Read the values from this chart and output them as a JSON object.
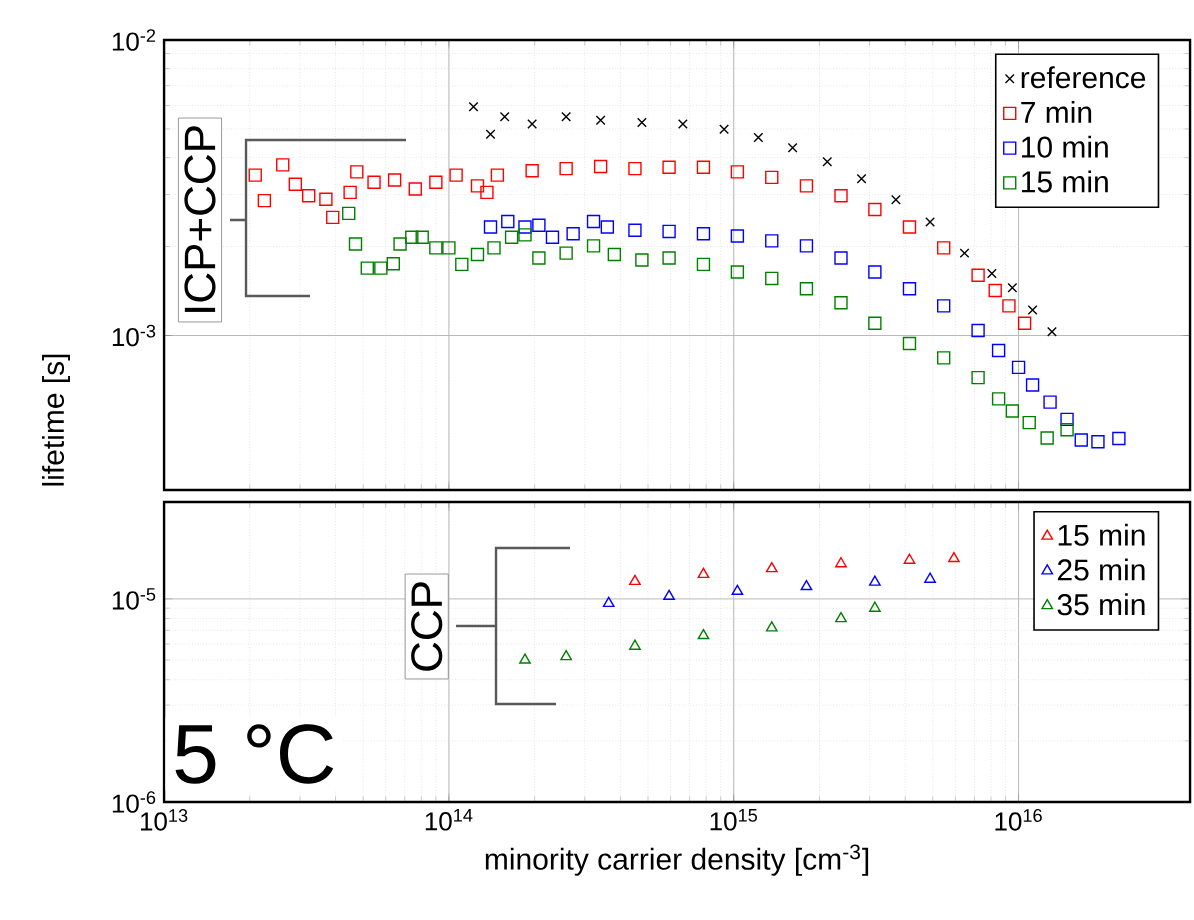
{
  "chart_data": [
    {
      "type": "scatter",
      "log": "xy",
      "grid": true,
      "legend": "top right",
      "tick_labels": "y",
      "ylabel": "lifetime [s]",
      "xlim": [
        10000000000000.0,
        4e+16
      ],
      "ylim": [
        0.0003,
        0.01
      ],
      "xticks": [
        {
          "value": 10000000000000.0,
          "label": null
        },
        {
          "value": 100000000000000.0,
          "label": null
        },
        {
          "value": 1000000000000000.0,
          "label": null
        },
        {
          "value": 1e+16,
          "label": null
        }
      ],
      "yticks": [
        {
          "value": 0.001,
          "label": "10$^{-3}$"
        },
        {
          "value": 0.01,
          "label": "10$^{-2}$"
        }
      ],
      "annotations": [
        "ICP+CCP"
      ],
      "series": [
        {
          "name": "reference",
          "color": "#000000",
          "marker": "cross",
          "x": [
            122000000000000.0,
            140000000000000.0,
            157000000000000.0,
            196000000000000.0,
            258000000000000.0,
            341000000000000.0,
            476000000000000.0,
            663000000000000.0,
            925000000000000.0,
            1220000000000000.0,
            1610000000000000.0,
            2130000000000000.0,
            2810000000000000.0,
            3710000000000000.0,
            4890000000000000.0,
            6460000000000000.0,
            8060000000000000.0,
            9510000000000000.0,
            1.12e+16,
            1.31e+16
          ],
          "values": [
            0.00594,
            0.0048,
            0.0055,
            0.0052,
            0.0055,
            0.00535,
            0.00526,
            0.0052,
            0.00499,
            0.00468,
            0.00432,
            0.00387,
            0.00339,
            0.00288,
            0.00242,
            0.0019,
            0.00162,
            0.00145,
            0.00122,
            0.00103
          ]
        },
        {
          "name": "7 min",
          "color": "#ff0000",
          "marker": "square",
          "x": [
            20900000000000.0,
            22500000000000.0,
            26100000000000.0,
            28900000000000.0,
            32200000000000.0,
            37000000000000.0,
            39100000000000.0,
            45000000000000.0,
            47500000000000.0,
            54600000000000.0,
            64500000000000.0,
            76200000000000.0,
            90000000000000.0,
            106000000000000.0,
            126000000000000.0,
            136000000000000.0,
            148000000000000.0,
            196000000000000.0,
            258000000000000.0,
            341000000000000.0,
            450000000000000.0,
            593000000000000.0,
            783000000000000.0,
            1030000000000000.0,
            1360000000000000.0,
            1800000000000000.0,
            2380000000000000.0,
            3130000000000000.0,
            4140000000000000.0,
            5460000000000000.0,
            7210000000000000.0,
            8280000000000000.0,
            9250000000000000.0,
            1.05e+16
          ],
          "values": [
            0.00349,
            0.00286,
            0.00378,
            0.00325,
            0.00297,
            0.00289,
            0.00251,
            0.00305,
            0.00358,
            0.0033,
            0.00336,
            0.00313,
            0.0033,
            0.00349,
            0.00321,
            0.00305,
            0.00349,
            0.00361,
            0.00367,
            0.00373,
            0.00367,
            0.00371,
            0.00371,
            0.00358,
            0.00343,
            0.00321,
            0.00297,
            0.00267,
            0.00233,
            0.00198,
            0.0016,
            0.00142,
            0.00126,
            0.0011
          ]
        },
        {
          "name": "10 min",
          "color": "#0000ff",
          "marker": "square",
          "x": [
            140000000000000.0,
            161000000000000.0,
            185000000000000.0,
            207000000000000.0,
            231000000000000.0,
            273000000000000.0,
            322000000000000.0,
            360000000000000.0,
            450000000000000.0,
            593000000000000.0,
            783000000000000.0,
            1030000000000000.0,
            1360000000000000.0,
            1800000000000000.0,
            2380000000000000.0,
            3130000000000000.0,
            4140000000000000.0,
            5460000000000000.0,
            7210000000000000.0,
            8510000000000000.0,
            1e+16,
            1.12e+16,
            1.29e+16,
            1.48e+16,
            1.66e+16,
            1.9e+16,
            2.25e+16
          ],
          "values": [
            0.00233,
            0.00243,
            0.00233,
            0.00236,
            0.00215,
            0.00221,
            0.00243,
            0.00233,
            0.00227,
            0.00225,
            0.00221,
            0.00217,
            0.00209,
            0.00201,
            0.00183,
            0.00164,
            0.00144,
            0.00126,
            0.00104,
            0.00089,
            0.00078,
            0.00068,
            0.000595,
            0.00052,
            0.000443,
            0.000437,
            0.000448
          ]
        },
        {
          "name": "15 min",
          "color": "#008000",
          "marker": "square",
          "x": [
            44500000000000.0,
            47000000000000.0,
            51700000000000.0,
            57700000000000.0,
            63800000000000.0,
            67400000000000.0,
            74100000000000.0,
            80600000000000.0,
            90000000000000.0,
            100000000000000.0,
            111000000000000.0,
            126000000000000.0,
            144000000000000.0,
            166000000000000.0,
            185000000000000.0,
            207000000000000.0,
            258000000000000.0,
            322000000000000.0,
            381000000000000.0,
            476000000000000.0,
            593000000000000.0,
            783000000000000.0,
            1030000000000000.0,
            1360000000000000.0,
            1800000000000000.0,
            2380000000000000.0,
            3130000000000000.0,
            4140000000000000.0,
            5460000000000000.0,
            7210000000000000.0,
            8510000000000000.0,
            9510000000000000.0,
            1.09e+16,
            1.26e+16,
            1.48e+16
          ],
          "values": [
            0.00259,
            0.00204,
            0.00169,
            0.00169,
            0.00175,
            0.00204,
            0.00215,
            0.00215,
            0.00198,
            0.00198,
            0.00174,
            0.00188,
            0.00198,
            0.00215,
            0.00219,
            0.00183,
            0.0019,
            0.00201,
            0.00188,
            0.0018,
            0.00183,
            0.00174,
            0.00164,
            0.00156,
            0.00144,
            0.00129,
            0.0011,
            0.00094,
            0.00084,
            0.00072,
            0.00061,
            0.000555,
            0.000507,
            0.00045,
            0.00048
          ]
        }
      ]
    },
    {
      "type": "scatter",
      "log": "xy",
      "grid": true,
      "legend": "top right",
      "xlabel": "minority carrier density [cm$^{-3}$]",
      "xlim": [
        10000000000000.0,
        4e+16
      ],
      "ylim": [
        1e-06,
        3e-05
      ],
      "xticks": [
        {
          "value": 10000000000000.0,
          "label": "10$^{13}$"
        },
        {
          "value": 100000000000000.0,
          "label": "10$^{14}$"
        },
        {
          "value": 1000000000000000.0,
          "label": "10$^{15}$"
        },
        {
          "value": 1e+16,
          "label": "10$^{16}$"
        }
      ],
      "yticks": [
        {
          "value": 1e-06,
          "label": "10$^{-6}$"
        },
        {
          "value": 1e-05,
          "label": "10$^{-5}$"
        }
      ],
      "annotations": [
        "CCP",
        "5 °C"
      ],
      "series": [
        {
          "name": "15 min",
          "color": "#ff0000",
          "marker": "triangle",
          "x": [
            450000000000000.0,
            783000000000000.0,
            1360000000000000.0,
            2380000000000000.0,
            4140000000000000.0,
            5930000000000000.0
          ],
          "values": [
            1.22e-05,
            1.32e-05,
            1.41e-05,
            1.49e-05,
            1.55e-05,
            1.58e-05
          ]
        },
        {
          "name": "25 min",
          "color": "#0000ff",
          "marker": "triangle",
          "x": [
            364000000000000.0,
            593000000000000.0,
            1030000000000000.0,
            1800000000000000.0,
            3130000000000000.0,
            4890000000000000.0
          ],
          "values": [
            9.5e-06,
            1.03e-05,
            1.09e-05,
            1.15e-05,
            1.21e-05,
            1.25e-05
          ]
        },
        {
          "name": "35 min",
          "color": "#008000",
          "marker": "triangle",
          "x": [
            185000000000000.0,
            258000000000000.0,
            450000000000000.0,
            783000000000000.0,
            1360000000000000.0,
            2380000000000000.0,
            3130000000000000.0
          ],
          "values": [
            5e-06,
            5.2e-06,
            5.85e-06,
            6.6e-06,
            7.2e-06,
            8e-06,
            9e-06
          ]
        }
      ]
    }
  ]
}
